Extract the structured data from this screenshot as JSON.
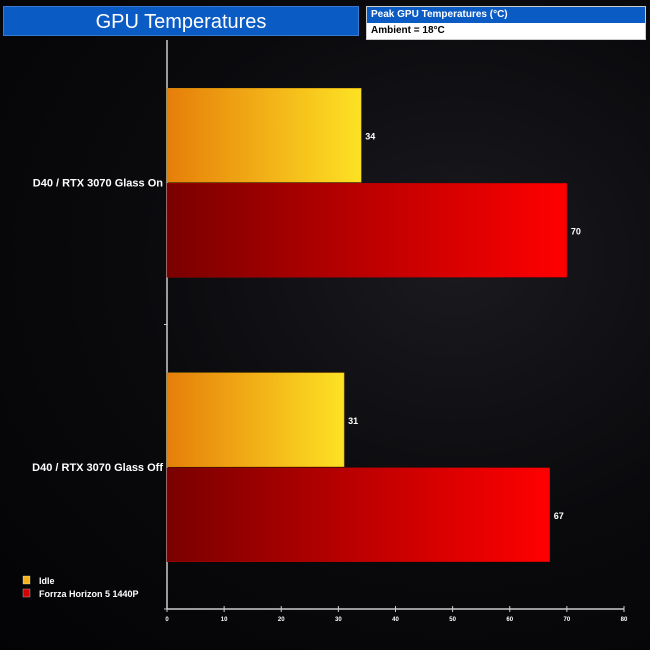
{
  "chart_data": {
    "type": "bar",
    "orientation": "horizontal",
    "title": "GPU Temperatures",
    "subtitle": "Peak GPU Temperatures (°C)",
    "note": "Ambient = 18°C",
    "categories": [
      "D40 / RTX 3070 Glass On",
      "D40 / RTX 3070 Glass Off"
    ],
    "series": [
      {
        "name": "Idle",
        "values": [
          34,
          31
        ],
        "color": "#f7b21a"
      },
      {
        "name": "Forrza Horizon 5 1440P",
        "values": [
          70,
          67
        ],
        "color": "#d40000"
      }
    ],
    "xlim": [
      0,
      80
    ],
    "xticks": [
      0,
      10,
      20,
      30,
      40,
      50,
      60,
      70,
      80
    ],
    "legend": "bottom-left",
    "grid": false
  }
}
